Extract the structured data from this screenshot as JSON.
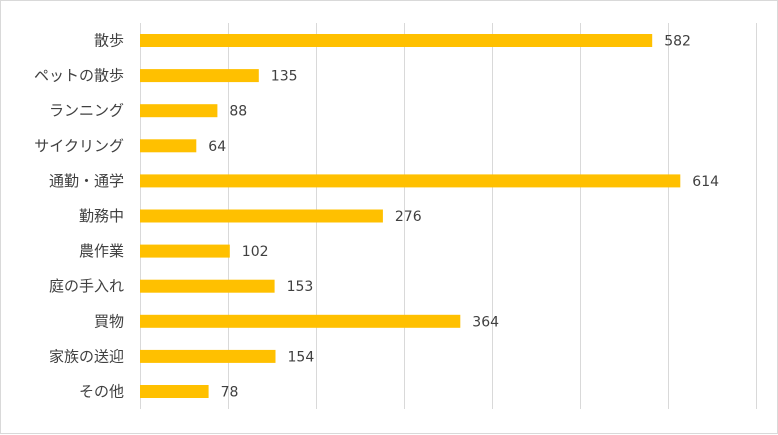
{
  "chart_data": {
    "type": "bar",
    "orientation": "horizontal",
    "categories": [
      "散歩",
      "ペットの散歩",
      "ランニング",
      "サイクリング",
      "通勤・通学",
      "勤務中",
      "農作業",
      "庭の手入れ",
      "買物",
      "家族の送迎",
      "その他"
    ],
    "values": [
      582,
      135,
      88,
      64,
      614,
      276,
      102,
      153,
      364,
      154,
      78
    ],
    "xlim": [
      0,
      700
    ],
    "x_gridlines": [
      0,
      100,
      200,
      300,
      400,
      500,
      600,
      700
    ],
    "grid": true,
    "legend": "none",
    "bar_color": "#FFC000",
    "grid_color": "#d9d9d9",
    "text_color": "#404040",
    "data_labels": true
  }
}
